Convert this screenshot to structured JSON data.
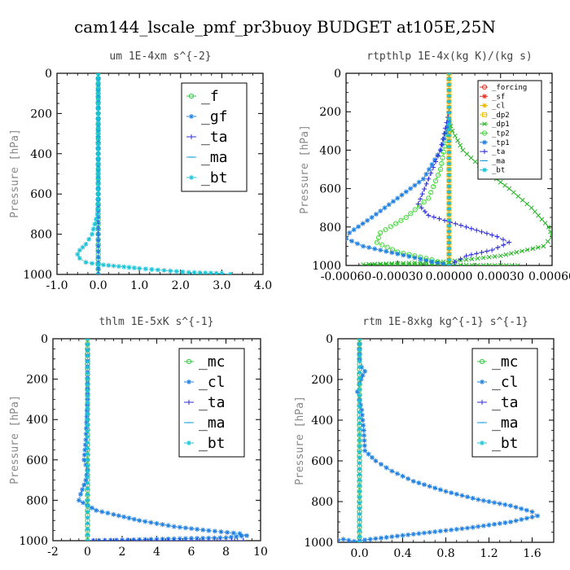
{
  "figure": {
    "title": "cam144_lscale_pmf_pr3buoy  BUDGET at105E,25N"
  },
  "colors": {
    "forcing": "#e8352a",
    "sf": "#e8352a",
    "cl": "#e8b800",
    "dp2": "#f2c200",
    "dp1": "#22b522",
    "tp2": "#44d83a",
    "tp1": "#1f7fe0",
    "ta": "#2f2fd8",
    "ma": "#1ea0d8",
    "bt": "#19c4d8",
    "f": "#3ac84a",
    "gf": "#1f7fe0",
    "mc": "#3ac84a",
    "thlm_cl": "#1f7fe0",
    "rtm_cl": "#1f7fe0"
  },
  "chart_data": [
    {
      "type": "line",
      "title": "um  1E-4xm s^{-2}",
      "ylabel": "Pressure [hPa]",
      "ylim": [
        1000,
        0
      ],
      "xlim": [
        -1.0,
        4.0
      ],
      "xticks": [
        "-1.0",
        "0.0",
        "1.0",
        "2.0",
        "3.0",
        "4.0"
      ],
      "yticks": [
        "0",
        "200",
        "400",
        "600",
        "800",
        "1000"
      ],
      "legend_position": "top-right",
      "legend_font": "big",
      "series": [
        {
          "name": "_f",
          "key": "f",
          "marker": "circle",
          "points": [
            [
              0,
              0
            ],
            [
              0,
              100
            ],
            [
              0,
              200
            ],
            [
              0,
              300
            ],
            [
              0,
              400
            ],
            [
              0,
              500
            ],
            [
              0,
              600
            ],
            [
              0,
              700
            ],
            [
              0,
              800
            ],
            [
              0,
              900
            ],
            [
              0,
              1000
            ]
          ]
        },
        {
          "name": "_gf",
          "key": "gf",
          "marker": "star",
          "points": [
            [
              0,
              0
            ],
            [
              0,
              1000
            ]
          ]
        },
        {
          "name": "_ta",
          "key": "ta",
          "marker": "plus",
          "points": [
            [
              0,
              0
            ],
            [
              0,
              1000
            ]
          ]
        },
        {
          "name": "_ma",
          "key": "ma",
          "marker": "dash",
          "points": [
            [
              0,
              0
            ],
            [
              0,
              1000
            ]
          ]
        },
        {
          "name": "_bt",
          "key": "bt",
          "marker": "star",
          "points": [
            [
              0.0,
              0
            ],
            [
              0.0,
              100
            ],
            [
              0.0,
              200
            ],
            [
              0.0,
              300
            ],
            [
              0.0,
              400
            ],
            [
              0.0,
              500
            ],
            [
              0.0,
              600
            ],
            [
              -0.02,
              700
            ],
            [
              -0.15,
              800
            ],
            [
              -0.3,
              850
            ],
            [
              -0.45,
              880
            ],
            [
              -0.5,
              900
            ],
            [
              -0.45,
              920
            ],
            [
              -0.3,
              940
            ],
            [
              0.0,
              950
            ],
            [
              0.5,
              960
            ],
            [
              1.0,
              970
            ],
            [
              1.6,
              980
            ],
            [
              2.2,
              990
            ],
            [
              3.0,
              995
            ],
            [
              3.2,
              1000
            ]
          ]
        }
      ]
    },
    {
      "type": "line",
      "title": "rtpthlp  1E-4x(kg K)/(kg s)",
      "ylabel": "Pressure [hPa]",
      "ylim": [
        1000,
        0
      ],
      "xlim": [
        -0.0006,
        0.0006
      ],
      "xticks": [
        "-0.00060",
        "-0.00030",
        "0.00000",
        "0.00030",
        "0.00060"
      ],
      "yticks": [
        "0",
        "200",
        "400",
        "600",
        "800",
        "1000"
      ],
      "legend_position": "top-right",
      "legend_font": "small",
      "series": [
        {
          "name": "_forcing",
          "key": "forcing",
          "marker": "circle",
          "points": [
            [
              0,
              0
            ],
            [
              0,
              1000
            ]
          ]
        },
        {
          "name": "_sf",
          "key": "sf",
          "marker": "star",
          "points": [
            [
              0,
              0
            ],
            [
              0,
              1000
            ]
          ]
        },
        {
          "name": "_cl",
          "key": "cl",
          "marker": "star",
          "points": [
            [
              0,
              0
            ],
            [
              0,
              1000
            ]
          ]
        },
        {
          "name": "_dp2",
          "key": "dp2",
          "marker": "square",
          "points": [
            [
              0,
              0
            ],
            [
              0,
              1000
            ]
          ]
        },
        {
          "name": "_dp1",
          "key": "dp1",
          "marker": "cross",
          "points": [
            [
              0,
              250
            ],
            [
              2e-05,
              300
            ],
            [
              8e-05,
              400
            ],
            [
              0.0002,
              500
            ],
            [
              0.00035,
              600
            ],
            [
              0.00048,
              700
            ],
            [
              0.00058,
              800
            ],
            [
              0.0006,
              850
            ],
            [
              0.00055,
              900
            ],
            [
              0.0003,
              950
            ],
            [
              0.0,
              980
            ],
            [
              -0.0005,
              995
            ],
            [
              0.0004,
              1000
            ]
          ]
        },
        {
          "name": "_tp2",
          "key": "tp2",
          "marker": "circle",
          "points": [
            [
              0,
              250
            ],
            [
              -2e-05,
              350
            ],
            [
              -5e-05,
              500
            ],
            [
              -0.00012,
              650
            ],
            [
              -0.00025,
              750
            ],
            [
              -0.0004,
              830
            ],
            [
              -0.00042,
              880
            ],
            [
              -0.0003,
              930
            ],
            [
              -0.0001,
              970
            ],
            [
              0,
              1000
            ]
          ]
        },
        {
          "name": "_tp1",
          "key": "tp1",
          "marker": "star",
          "points": [
            [
              0,
              250
            ],
            [
              -5e-05,
              400
            ],
            [
              -0.00015,
              550
            ],
            [
              -0.0003,
              650
            ],
            [
              -0.00045,
              750
            ],
            [
              -0.00058,
              830
            ],
            [
              -0.0006,
              860
            ],
            [
              -0.0005,
              900
            ],
            [
              -0.0003,
              940
            ],
            [
              -0.0001,
              980
            ],
            [
              0,
              1000
            ]
          ]
        },
        {
          "name": "_ta",
          "key": "ta",
          "marker": "plus",
          "points": [
            [
              0,
              200
            ],
            [
              -5e-05,
              400
            ],
            [
              -0.00012,
              550
            ],
            [
              -0.00018,
              680
            ],
            [
              -0.00012,
              740
            ],
            [
              0.0001,
              800
            ],
            [
              0.00028,
              850
            ],
            [
              0.00035,
              880
            ],
            [
              0.00025,
              920
            ],
            [
              0.0001,
              950
            ],
            [
              0,
              1000
            ]
          ]
        },
        {
          "name": "_ma",
          "key": "ma",
          "marker": "dash",
          "points": [
            [
              0,
              0
            ],
            [
              0,
              1000
            ]
          ]
        },
        {
          "name": "_bt",
          "key": "bt",
          "marker": "star",
          "points": [
            [
              0,
              0
            ],
            [
              0,
              1000
            ]
          ]
        }
      ]
    },
    {
      "type": "line",
      "title": "thlm  1E-5xK s^{-1}",
      "ylabel": "Pressure [hPa]",
      "ylim": [
        1000,
        0
      ],
      "xlim": [
        -2,
        10
      ],
      "xticks": [
        "-2",
        "0",
        "2",
        "4",
        "6",
        "8",
        "10"
      ],
      "yticks": [
        "0",
        "200",
        "400",
        "600",
        "800",
        "1000"
      ],
      "legend_position": "top-right",
      "legend_font": "big",
      "series": [
        {
          "name": "_mc",
          "key": "mc",
          "marker": "circle",
          "points": [
            [
              0,
              0
            ],
            [
              0,
              100
            ],
            [
              0,
              200
            ],
            [
              0,
              300
            ],
            [
              0,
              400
            ],
            [
              0,
              500
            ],
            [
              0,
              600
            ],
            [
              0,
              700
            ],
            [
              0,
              800
            ],
            [
              0,
              900
            ],
            [
              0,
              1000
            ]
          ]
        },
        {
          "name": "_cl",
          "key": "thlm_cl",
          "marker": "star",
          "points": [
            [
              0,
              0
            ],
            [
              0,
              300
            ],
            [
              -0.1,
              500
            ],
            [
              -0.2,
              600
            ],
            [
              0,
              650
            ],
            [
              -0.1,
              700
            ],
            [
              -0.4,
              770
            ],
            [
              -0.5,
              800
            ],
            [
              0.5,
              850
            ],
            [
              1.5,
              870
            ],
            [
              3,
              900
            ],
            [
              5,
              930
            ],
            [
              7,
              950
            ],
            [
              8.8,
              965
            ],
            [
              9.2,
              975
            ],
            [
              8,
              985
            ],
            [
              0,
              1000
            ]
          ]
        },
        {
          "name": "_ta",
          "key": "ta",
          "marker": "plus",
          "points": [
            [
              0,
              0
            ],
            [
              0,
              1000
            ],
            [
              4,
              1000
            ],
            [
              9,
              1000
            ]
          ]
        },
        {
          "name": "_ma",
          "key": "ma",
          "marker": "dash",
          "points": [
            [
              0,
              0
            ],
            [
              0,
              1000
            ]
          ]
        },
        {
          "name": "_bt",
          "key": "bt",
          "marker": "star",
          "points": [
            [
              0,
              0
            ],
            [
              0,
              1000
            ]
          ]
        }
      ]
    },
    {
      "type": "line",
      "title": "rtm  1E-8xkg kg^{-1} s^{-1}",
      "ylabel": "Pressure [hPa]",
      "ylim": [
        1000,
        0
      ],
      "xlim": [
        -0.2,
        1.8
      ],
      "xticks": [
        "0.0",
        "0.4",
        "0.8",
        "1.2",
        "1.6"
      ],
      "xtick_values": [
        0.0,
        0.4,
        0.8,
        1.2,
        1.6
      ],
      "yticks": [
        "0",
        "200",
        "400",
        "600",
        "800",
        "1000"
      ],
      "legend_position": "top-right",
      "legend_font": "big",
      "series": [
        {
          "name": "_mc",
          "key": "mc",
          "marker": "circle",
          "points": [
            [
              0,
              0
            ],
            [
              0,
              100
            ],
            [
              0,
              200
            ],
            [
              0,
              300
            ],
            [
              0,
              400
            ],
            [
              0,
              500
            ],
            [
              0,
              600
            ],
            [
              0,
              700
            ],
            [
              0,
              800
            ],
            [
              0,
              900
            ],
            [
              0,
              1000
            ]
          ]
        },
        {
          "name": "_cl",
          "key": "rtm_cl",
          "marker": "star",
          "points": [
            [
              0,
              0
            ],
            [
              0,
              100
            ],
            [
              0.02,
              140
            ],
            [
              0.05,
              160
            ],
            [
              0.03,
              180
            ],
            [
              0,
              220
            ],
            [
              -0.02,
              260
            ],
            [
              0,
              300
            ],
            [
              0.02,
              350
            ],
            [
              0.04,
              450
            ],
            [
              0.05,
              550
            ],
            [
              0.15,
              600
            ],
            [
              0.3,
              650
            ],
            [
              0.5,
              700
            ],
            [
              0.8,
              750
            ],
            [
              1.1,
              790
            ],
            [
              1.4,
              820
            ],
            [
              1.6,
              850
            ],
            [
              1.65,
              870
            ],
            [
              1.4,
              900
            ],
            [
              1.0,
              930
            ],
            [
              0.5,
              960
            ],
            [
              0.1,
              985
            ],
            [
              -0.05,
              995
            ],
            [
              -0.15,
              985
            ],
            [
              -0.2,
              990
            ]
          ]
        },
        {
          "name": "_ta",
          "key": "ta",
          "marker": "plus",
          "points": [
            [
              0,
              0
            ],
            [
              0,
              1000
            ]
          ]
        },
        {
          "name": "_ma",
          "key": "ma",
          "marker": "dash",
          "points": [
            [
              0,
              0
            ],
            [
              0,
              1000
            ]
          ]
        },
        {
          "name": "_bt",
          "key": "bt",
          "marker": "star",
          "points": [
            [
              0,
              0
            ],
            [
              0,
              1000
            ]
          ]
        }
      ]
    }
  ]
}
